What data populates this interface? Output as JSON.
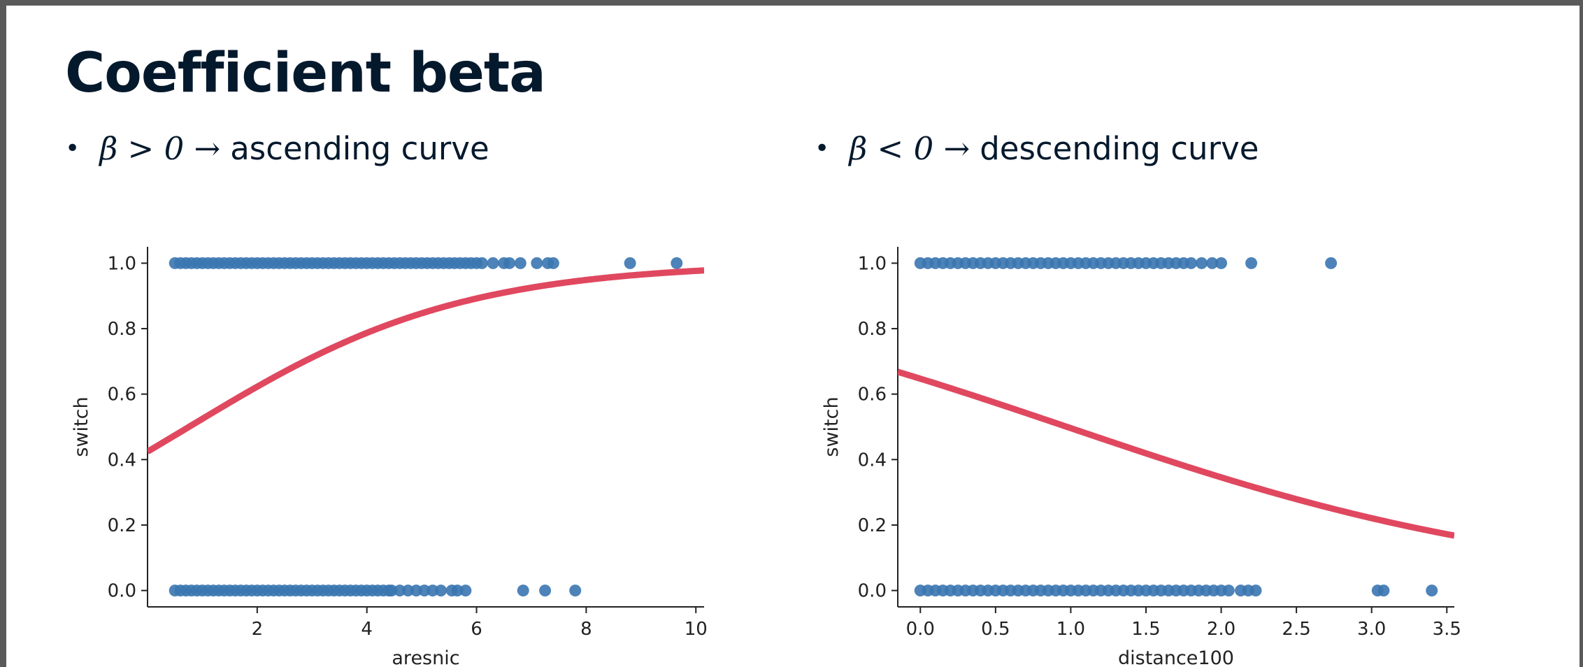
{
  "slide": {
    "title": "Coefficient beta",
    "bullets": [
      {
        "math": "β > 0 →",
        "text": "ascending curve"
      },
      {
        "math": "β < 0 →",
        "text": "descending curve"
      }
    ]
  },
  "colors": {
    "points": "#3a75b0",
    "curve": "#e0485f",
    "title": "#05192d",
    "axis": "#222222"
  },
  "chart_data": [
    {
      "type": "scatter",
      "title": "",
      "xlabel": "aresnic",
      "ylabel": "switch",
      "xlim": [
        0.0,
        10.15
      ],
      "ylim": [
        -0.05,
        1.05
      ],
      "xticks": [
        2,
        4,
        6,
        8,
        10
      ],
      "xtick_labels": [
        "2",
        "4",
        "6",
        "8",
        "10"
      ],
      "yticks": [
        0.0,
        0.2,
        0.4,
        0.6,
        0.8,
        1.0
      ],
      "ytick_labels": [
        "0.0",
        "0.2",
        "0.4",
        "0.6",
        "0.8",
        "1.0"
      ],
      "grid": false,
      "series": [
        {
          "kind": "points",
          "points_y1_x": [
            0.5,
            0.6,
            0.7,
            0.8,
            0.9,
            1.0,
            1.1,
            1.2,
            1.3,
            1.4,
            1.5,
            1.6,
            1.7,
            1.8,
            1.9,
            2.0,
            2.1,
            2.2,
            2.3,
            2.4,
            2.5,
            2.6,
            2.7,
            2.8,
            2.9,
            3.0,
            3.1,
            3.2,
            3.3,
            3.4,
            3.5,
            3.6,
            3.7,
            3.8,
            3.9,
            4.0,
            4.1,
            4.2,
            4.3,
            4.4,
            4.5,
            4.6,
            4.7,
            4.8,
            4.9,
            5.0,
            5.1,
            5.2,
            5.3,
            5.4,
            5.5,
            5.6,
            5.7,
            5.8,
            5.9,
            6.0,
            6.1,
            6.3,
            6.5,
            6.6,
            6.8,
            7.1,
            7.3,
            7.4,
            8.8,
            9.65
          ],
          "points_y0_x": [
            0.5,
            0.6,
            0.7,
            0.8,
            0.9,
            1.0,
            1.1,
            1.2,
            1.3,
            1.4,
            1.5,
            1.6,
            1.7,
            1.8,
            1.9,
            2.0,
            2.1,
            2.2,
            2.3,
            2.4,
            2.5,
            2.6,
            2.7,
            2.8,
            2.9,
            3.0,
            3.1,
            3.2,
            3.3,
            3.4,
            3.5,
            3.6,
            3.7,
            3.8,
            3.9,
            4.0,
            4.1,
            4.2,
            4.3,
            4.4,
            4.45,
            4.6,
            4.75,
            4.9,
            5.05,
            5.2,
            5.35,
            5.55,
            5.65,
            5.8,
            6.85,
            7.25,
            7.8
          ]
        },
        {
          "kind": "logistic-curve",
          "intercept": -0.305,
          "coefficient": 0.403,
          "x_range": [
            0.0,
            10.15
          ]
        }
      ]
    },
    {
      "type": "scatter",
      "title": "",
      "xlabel": "distance100",
      "ylabel": "switch",
      "xlim": [
        -0.15,
        3.55
      ],
      "ylim": [
        -0.05,
        1.05
      ],
      "xticks": [
        0.0,
        0.5,
        1.0,
        1.5,
        2.0,
        2.5,
        3.0,
        3.5
      ],
      "xtick_labels": [
        "0.0",
        "0.5",
        "1.0",
        "1.5",
        "2.0",
        "2.5",
        "3.0",
        "3.5"
      ],
      "yticks": [
        0.0,
        0.2,
        0.4,
        0.6,
        0.8,
        1.0
      ],
      "ytick_labels": [
        "0.0",
        "0.2",
        "0.4",
        "0.6",
        "0.8",
        "1.0"
      ],
      "grid": false,
      "series": [
        {
          "kind": "points",
          "points_y1_x": [
            0.0,
            0.05,
            0.1,
            0.15,
            0.2,
            0.25,
            0.3,
            0.35,
            0.4,
            0.45,
            0.5,
            0.55,
            0.6,
            0.65,
            0.7,
            0.75,
            0.8,
            0.85,
            0.9,
            0.95,
            1.0,
            1.05,
            1.1,
            1.15,
            1.2,
            1.25,
            1.3,
            1.35,
            1.4,
            1.45,
            1.5,
            1.55,
            1.6,
            1.65,
            1.7,
            1.75,
            1.8,
            1.87,
            1.94,
            2.0,
            2.2,
            2.73
          ],
          "points_y0_x": [
            0.0,
            0.05,
            0.1,
            0.15,
            0.2,
            0.25,
            0.3,
            0.35,
            0.4,
            0.45,
            0.5,
            0.55,
            0.6,
            0.65,
            0.7,
            0.75,
            0.8,
            0.85,
            0.9,
            0.95,
            1.0,
            1.05,
            1.1,
            1.15,
            1.2,
            1.25,
            1.3,
            1.35,
            1.4,
            1.45,
            1.5,
            1.55,
            1.6,
            1.65,
            1.7,
            1.75,
            1.8,
            1.85,
            1.9,
            1.95,
            2.0,
            2.05,
            2.13,
            2.18,
            2.23,
            3.04,
            3.08,
            3.4
          ]
        },
        {
          "kind": "logistic-curve",
          "intercept": 0.606,
          "coefficient": -0.622,
          "x_range": [
            -0.15,
            3.55
          ]
        }
      ]
    }
  ]
}
